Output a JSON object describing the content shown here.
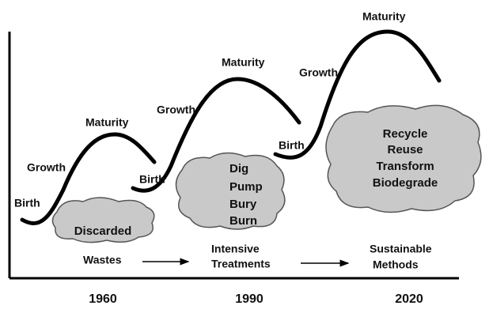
{
  "cycles": [
    {
      "birth": "Birth",
      "growth": "Growth",
      "maturity": "Maturity",
      "cloud": [
        "Discarded"
      ]
    },
    {
      "birth": "Birth",
      "growth": "Growth",
      "maturity": "Maturity",
      "cloud": [
        "Dig",
        "Pump",
        "Bury",
        "Burn"
      ]
    },
    {
      "birth": "Birth",
      "growth": "Growth",
      "maturity": "Maturity",
      "cloud": [
        "Recycle",
        "Reuse",
        "Transform",
        "Biodegrade"
      ]
    }
  ],
  "stages": [
    {
      "label": [
        "Wastes"
      ]
    },
    {
      "label": [
        "Intensive",
        "Treatments"
      ]
    },
    {
      "label": [
        "Sustainable",
        "Methods"
      ]
    }
  ],
  "years": [
    "1960",
    "1990",
    "2020"
  ]
}
